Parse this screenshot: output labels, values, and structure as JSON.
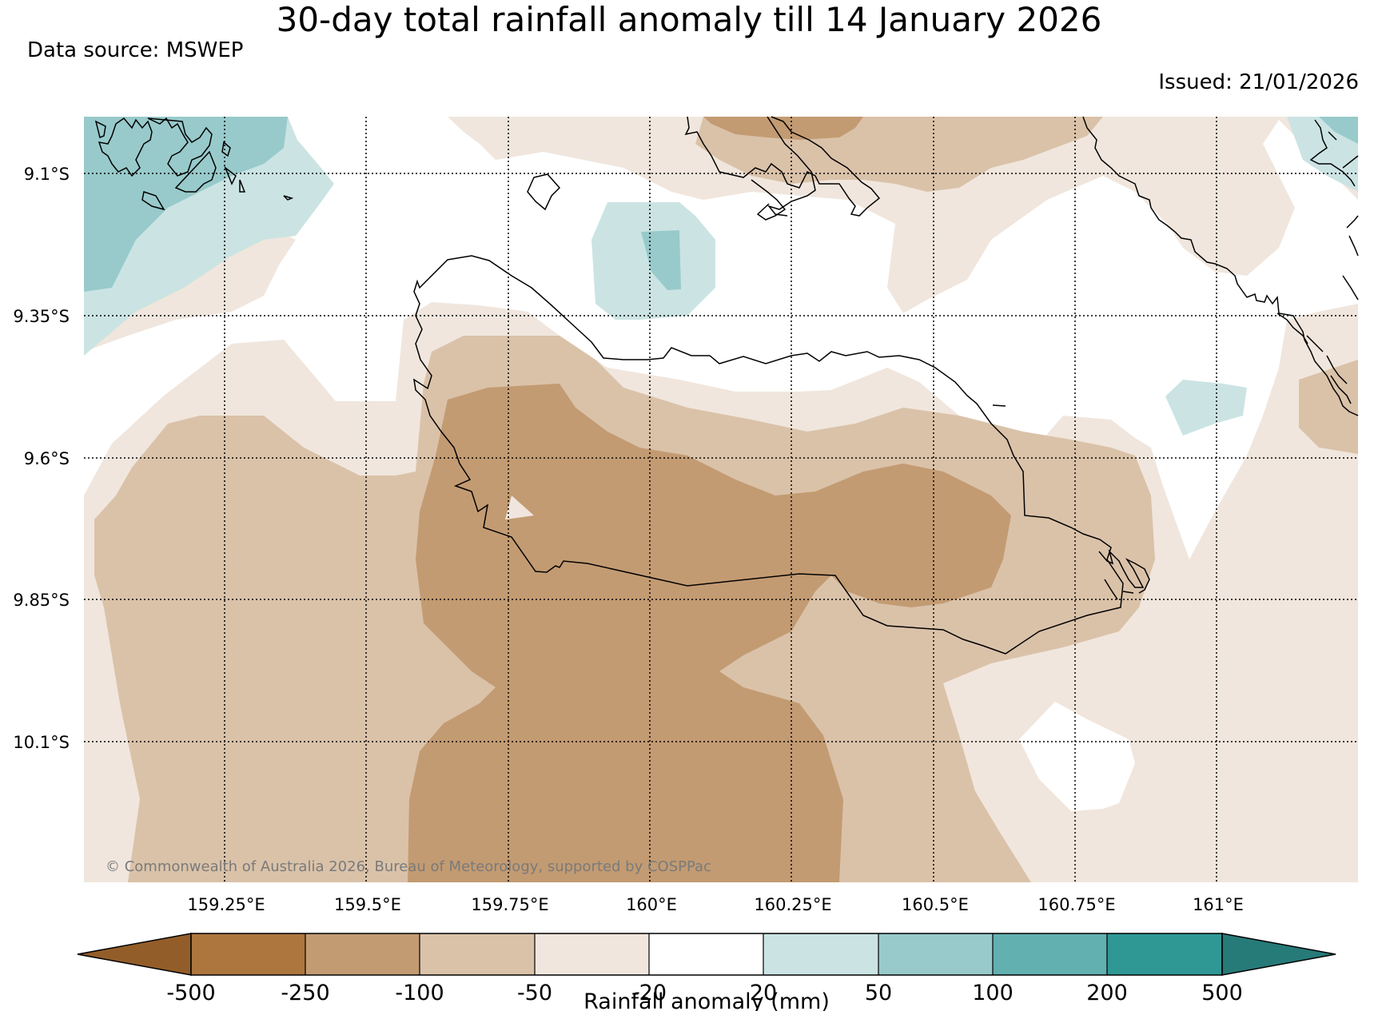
{
  "header": {
    "title": "30-day total rainfall anomaly till 14 January 2026",
    "data_source": "Data source: MSWEP",
    "issued": "Issued: 21/01/2026"
  },
  "map": {
    "lat_labels": [
      "9.1°S",
      "9.35°S",
      "9.6°S",
      "9.85°S",
      "10.1°S"
    ],
    "lon_labels": [
      "159.25°E",
      "159.5°E",
      "159.75°E",
      "160°E",
      "160.25°E",
      "160.5°E",
      "160.75°E",
      "161°E"
    ],
    "copyright": "© Commonwealth of Australia 2026, Bureau of Meteorology, supported by COSPPac"
  },
  "colorbar": {
    "title": "Rainfall anomaly (mm)",
    "ticks": [
      "-500",
      "-250",
      "-100",
      "-50",
      "-20",
      "20",
      "50",
      "100",
      "200",
      "500"
    ],
    "colors": {
      "lt_-500": "#935d29",
      "-500_-250": "#ad763f",
      "-250_-100": "#c39b72",
      "-100_-50": "#dac2a9",
      "-50_-20": "#f0e6dd",
      "-20_20": "#ffffff",
      "20_50": "#cbe4e3",
      "50_100": "#98cacb",
      "100_200": "#62b0b0",
      "200_500": "#2f9895",
      "gt_500": "#267a78"
    }
  }
}
